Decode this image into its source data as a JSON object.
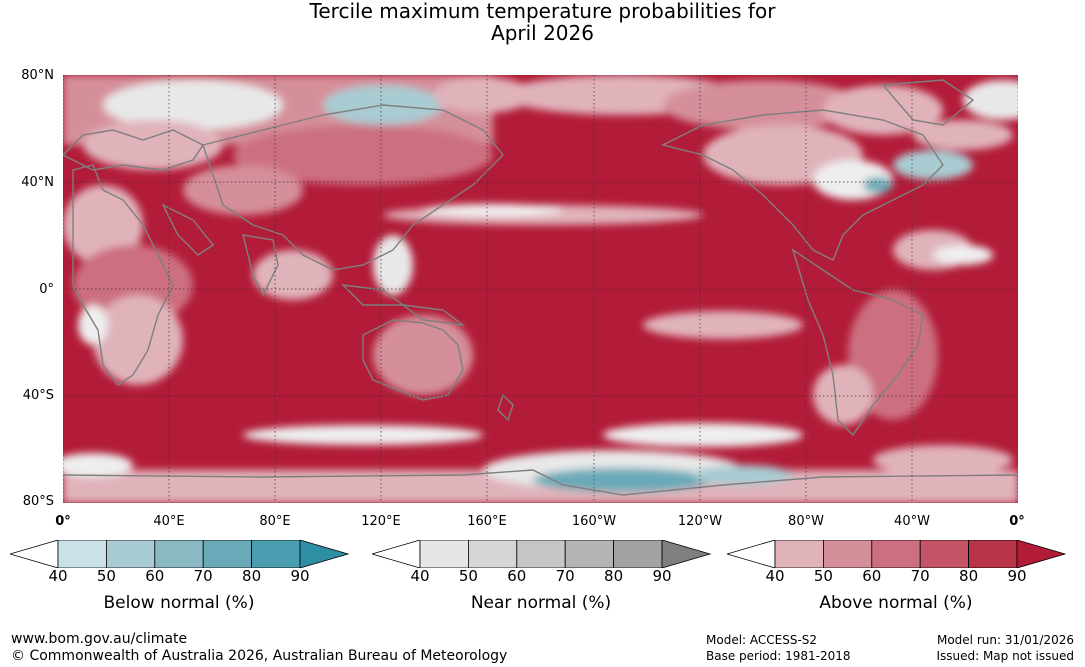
{
  "title": {
    "line1": "Tercile maximum temperature probabilities for",
    "line2": "April 2026"
  },
  "lat_labels": [
    "80°N",
    "40°N",
    "0°",
    "40°S",
    "80°S"
  ],
  "lon_labels": [
    "0°",
    "40°E",
    "80°E",
    "120°E",
    "160°E",
    "160°W",
    "120°W",
    "80°W",
    "40°W",
    "0°"
  ],
  "legends": [
    {
      "title": "Below normal (%)",
      "ticks": [
        "40",
        "50",
        "60",
        "70",
        "80",
        "90"
      ],
      "colors": [
        "#c9e2ea",
        "#a9cbd2",
        "#8ab8c3",
        "#6aaab8",
        "#4b9eaf",
        "#2e8fa4"
      ]
    },
    {
      "title": "Near normal (%)",
      "ticks": [
        "40",
        "50",
        "60",
        "70",
        "80",
        "90"
      ],
      "colors": [
        "#e6e6e6",
        "#d6d6d6",
        "#c6c6c6",
        "#b4b4b4",
        "#a2a2a2",
        "#7f7f7f"
      ]
    },
    {
      "title": "Above normal (%)",
      "ticks": [
        "40",
        "50",
        "60",
        "70",
        "80",
        "90"
      ],
      "colors": [
        "#e0b3bb",
        "#d58f9a",
        "#cc7080",
        "#c55466",
        "#ba3447",
        "#b21c38"
      ]
    }
  ],
  "footer": {
    "website": "www.bom.gov.au/climate",
    "copyright": "© Commonwealth of Australia 2026, Australian Bureau of Meteorology",
    "model": "Model: ACCESS-S2",
    "base_period": "Base period: 1981-2018",
    "model_run": "Model run: 31/01/2026",
    "issued": "Issued: Map not issued"
  },
  "colors": {
    "dominant_above": "#b21c38",
    "coastline": "#7f7f7f",
    "grid": "#333333"
  }
}
